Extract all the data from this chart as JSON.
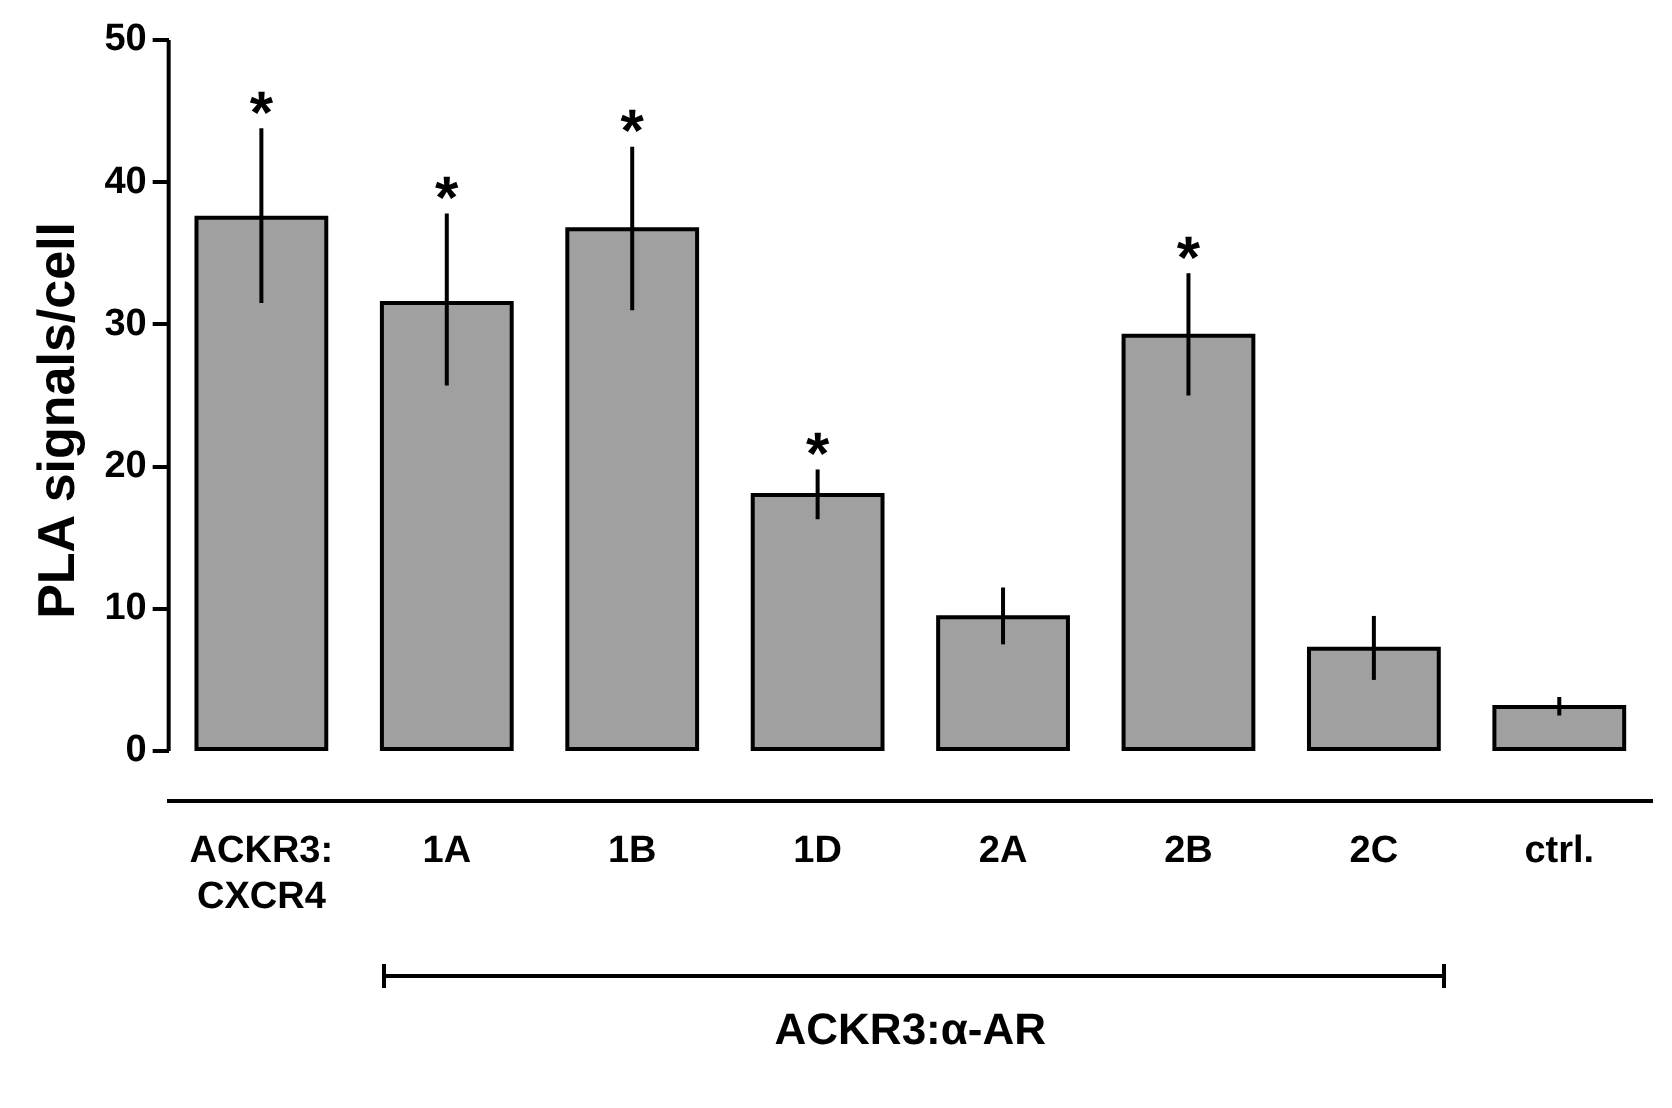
{
  "chart_data": {
    "type": "bar",
    "ylabel": "PLA signals/cell",
    "categories": [
      "ACKR3:\nCXCR4",
      "1A",
      "1B",
      "1D",
      "2A",
      "2B",
      "2C",
      "ctrl."
    ],
    "values": [
      37.5,
      31.5,
      36.7,
      18,
      9.4,
      29.2,
      7.2,
      3.1
    ],
    "errors": [
      [
        31.5,
        43.8
      ],
      [
        25.7,
        37.8
      ],
      [
        31,
        42.5
      ],
      [
        16.3,
        19.8
      ],
      [
        7.5,
        11.5
      ],
      [
        25,
        33.6
      ],
      [
        5,
        9.5
      ],
      [
        2.5,
        3.8
      ]
    ],
    "color": "#a0a0a0",
    "ylim": [
      -3.5,
      50
    ],
    "yticks": [
      0,
      10,
      20,
      30,
      40,
      50
    ],
    "grid": false,
    "legend": false,
    "annotations": [
      {
        "text": "*",
        "x": "ACKR3:\nCXCR4",
        "y": 43.8
      },
      {
        "text": "*",
        "x": "1A",
        "y": 37.8
      },
      {
        "text": "*",
        "x": "1B",
        "y": 42.5
      },
      {
        "text": "*",
        "x": "1D",
        "y": 19.8
      },
      {
        "text": "*",
        "x": "2B",
        "y": 33.6
      },
      "ACKR3:α-AR"
    ]
  }
}
